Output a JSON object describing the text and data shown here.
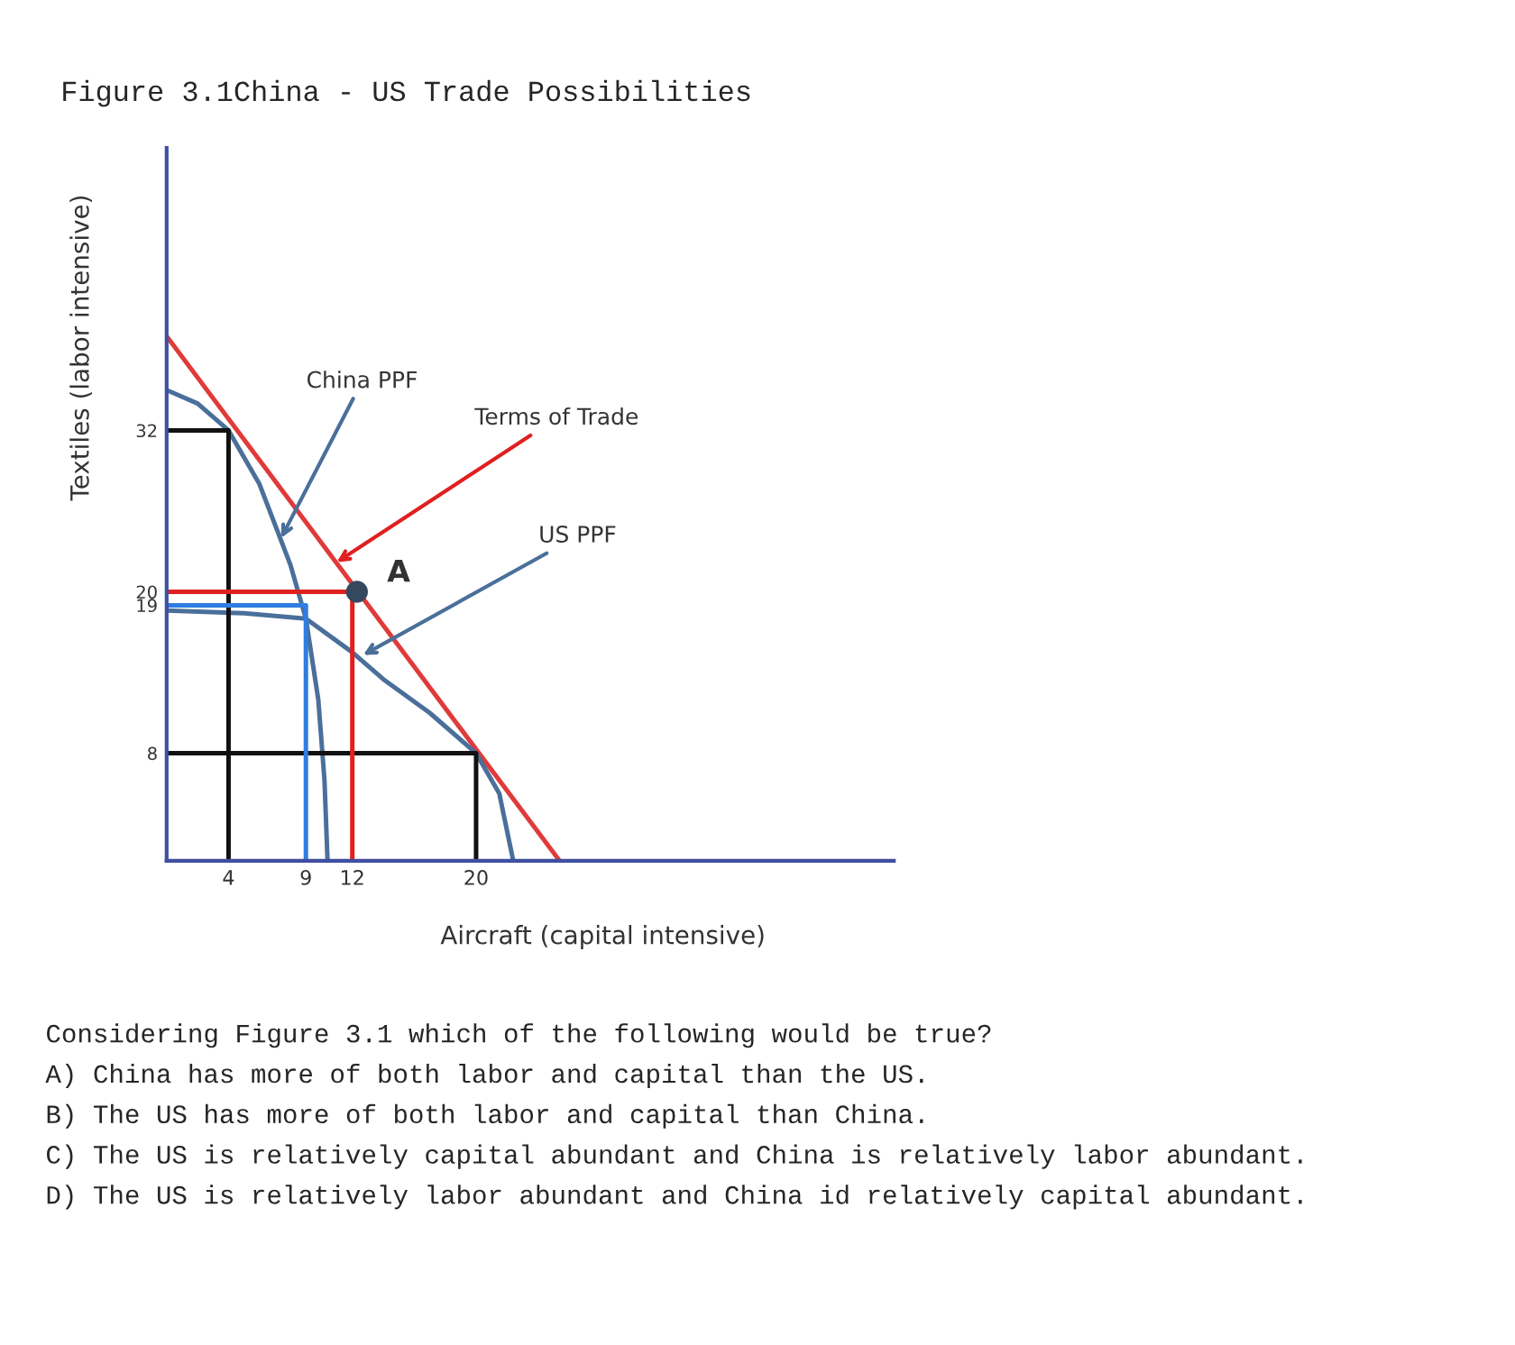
{
  "chart_data": {
    "type": "line",
    "title": "Figure 3.1China - US Trade Possibilities",
    "xlabel": "Aircraft (capital intensive)",
    "ylabel": "Textiles (labor intensive)",
    "xlim": [
      0,
      47
    ],
    "ylim": [
      0,
      53
    ],
    "xticks": [
      4,
      9,
      12,
      20
    ],
    "yticks": [
      8,
      19,
      20,
      32
    ],
    "grid": false,
    "legend": false,
    "line_style": "solid",
    "series": [
      {
        "color": "#e03a3a",
        "x": [
          0,
          25.4
        ],
        "values": [
          39,
          0
        ]
      },
      {
        "color": "#4a6f9a",
        "x": [
          0,
          2,
          4,
          6,
          8,
          9,
          9.8,
          10.2,
          10.4
        ],
        "values": [
          35,
          34,
          32,
          28,
          22,
          18,
          12,
          6,
          0
        ]
      },
      {
        "color": "#4a6f9a",
        "x": [
          0,
          5,
          9,
          12,
          14,
          17,
          20,
          21.5,
          22.4
        ],
        "values": [
          18.6,
          18.4,
          18,
          15.5,
          13.5,
          11,
          8,
          5,
          0
        ]
      },
      {
        "color": "#111111",
        "x": [
          0,
          4,
          4
        ],
        "values": [
          32,
          32,
          0
        ]
      },
      {
        "color": "#111111",
        "x": [
          0,
          20,
          20
        ],
        "values": [
          8,
          8,
          0
        ]
      },
      {
        "color": "#e02020",
        "x": [
          0,
          12,
          12
        ],
        "values": [
          20,
          20,
          0
        ]
      },
      {
        "color": "#2f7de1",
        "x": [
          0,
          9,
          9
        ],
        "values": [
          19,
          19,
          0
        ]
      },
      {
        "type": "scatter",
        "marker": "circle",
        "color": "#34495e",
        "x": [
          12.3
        ],
        "values": [
          20
        ]
      }
    ],
    "annotations": [
      {
        "text": "China PPF",
        "x": 7.4,
        "y": 24
      },
      {
        "text": "Terms of Trade",
        "x": 11,
        "y": 22.2
      },
      {
        "text": "US PPF",
        "x": 12.7,
        "y": 15.3
      },
      {
        "text": "A",
        "x": 12.3,
        "y": 20
      },
      "Considering Figure 3.1 which of the following would be true?",
      "A) China has more of both labor and capital than the US.",
      "B) The US has more of both labor and capital than China.",
      "C) The US is relatively capital abundant and China is relatively labor abundant.",
      "D) The US is relatively labor abundant and China id relatively capital abundant."
    ]
  }
}
